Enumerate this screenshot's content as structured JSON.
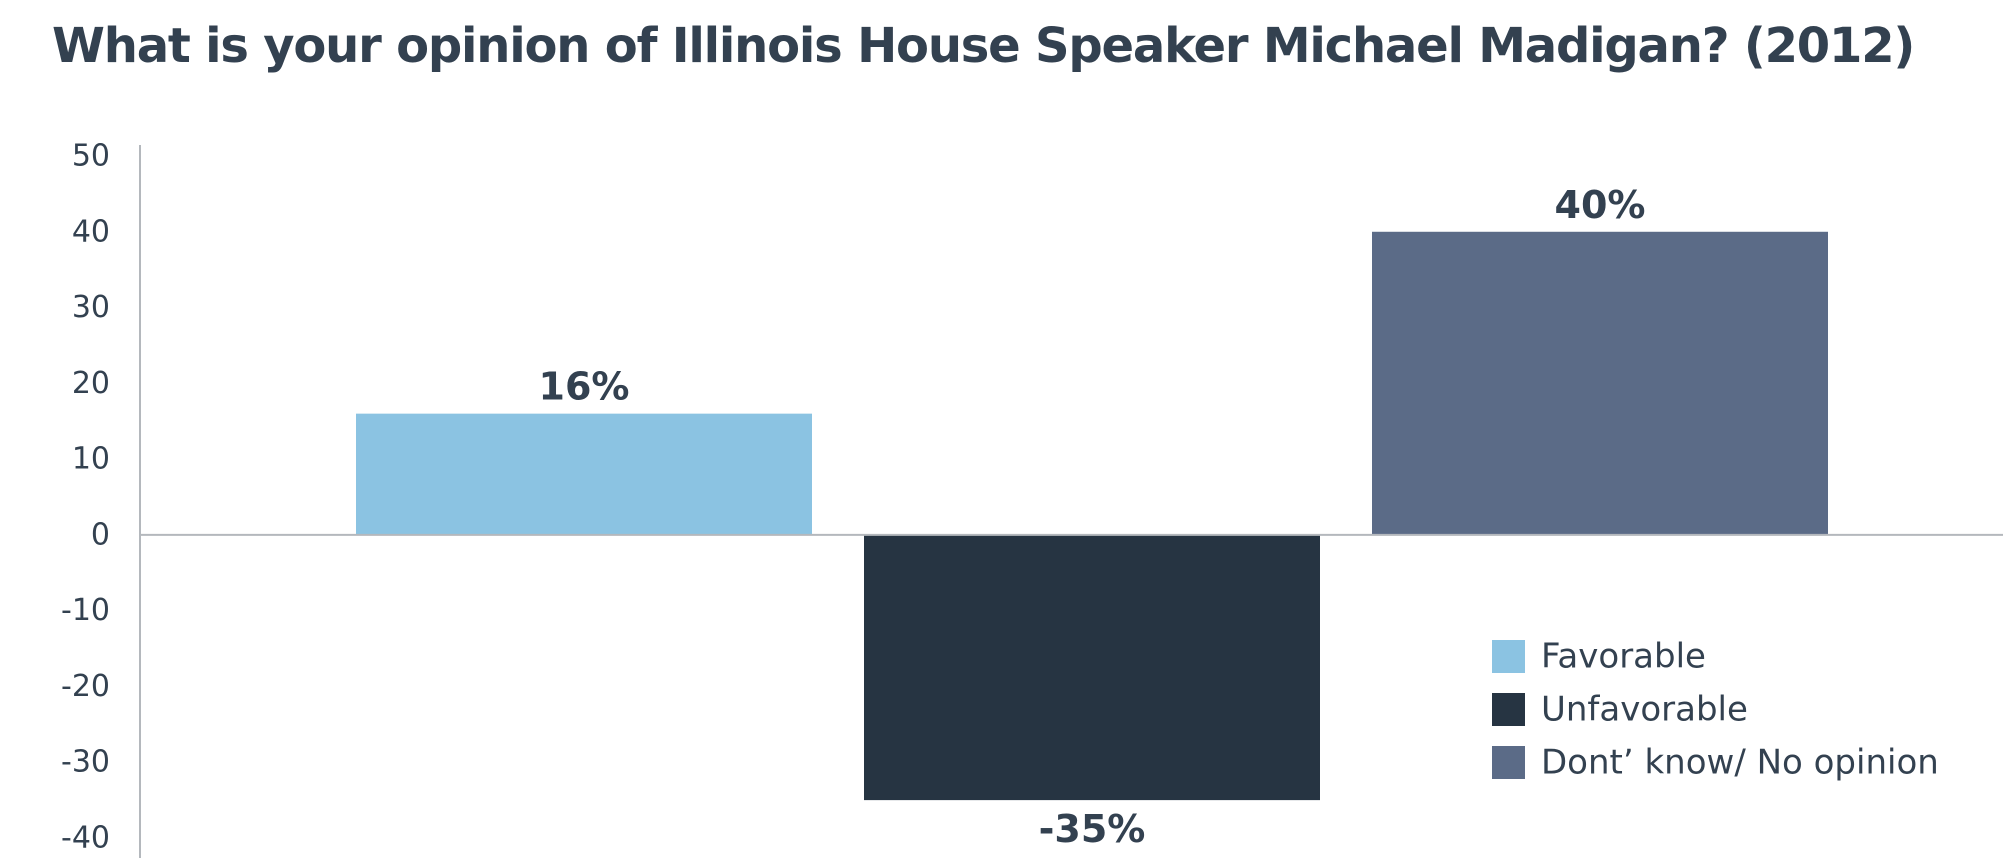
{
  "chart_data": {
    "type": "bar",
    "title": "What is your opinion of Illinois House Speaker Michael Madigan? (2012)",
    "xlabel": "",
    "ylabel": "",
    "ylim": [
      -40,
      50
    ],
    "yticks": [
      50,
      40,
      30,
      20,
      10,
      0,
      -10,
      -20,
      -30,
      -40
    ],
    "categories": [
      "Favorable",
      "Unfavorable",
      "Dont’ know/ No opinion"
    ],
    "values": [
      16,
      -35,
      40
    ],
    "data_labels": [
      "16%",
      "-35%",
      "40%"
    ],
    "colors": [
      "#8bc3e2",
      "#263442",
      "#5b6b87"
    ],
    "grid": false,
    "legend": {
      "position": "bottom-right",
      "entries": [
        "Favorable",
        "Unfavorable",
        "Dont’ know/ No opinion"
      ]
    }
  }
}
